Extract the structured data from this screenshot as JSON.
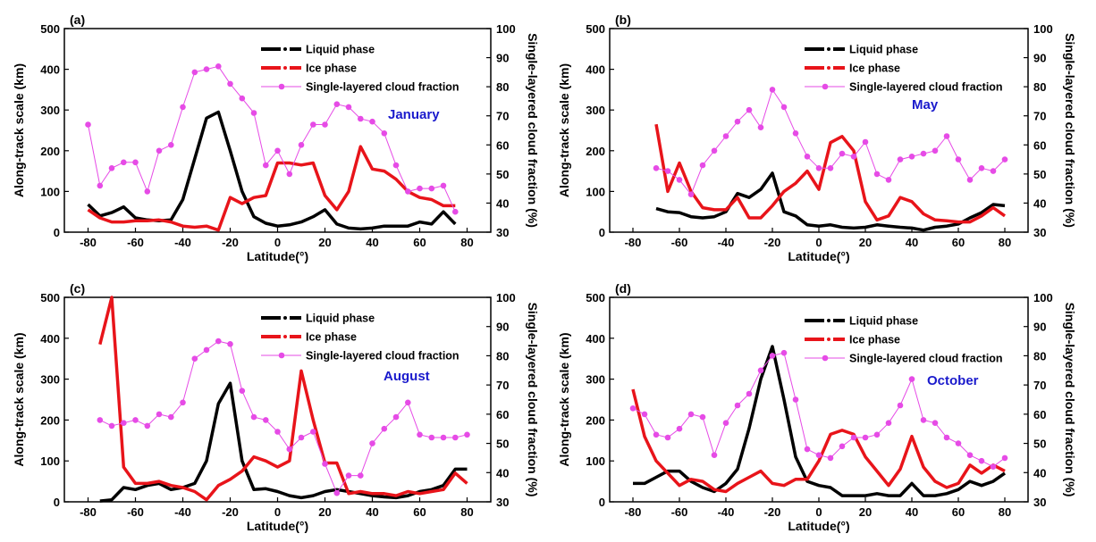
{
  "colors": {
    "liquid": "#000000",
    "ice": "#e8141a",
    "fraction": "#e64be6",
    "month": "#1a1acc"
  },
  "chart_data": [
    {
      "type": "line",
      "panel_label": "(a)",
      "month": "January",
      "xlabel": "Latitude(°)",
      "ylabel": "Along-track scale (km)",
      "ylabel2": "Single-layered cloud fraction (%)",
      "xlim": [
        -90,
        90
      ],
      "ylim": [
        0,
        500
      ],
      "ylim2": [
        30,
        100
      ],
      "xticks": [
        -80,
        -60,
        -40,
        -20,
        0,
        20,
        40,
        60,
        80
      ],
      "yticks": [
        0,
        100,
        200,
        300,
        400,
        500
      ],
      "yticks2": [
        30,
        40,
        50,
        60,
        70,
        80,
        90,
        100
      ],
      "legend": [
        "Liquid phase",
        "Ice phase",
        "Single-layered cloud fraction"
      ],
      "series": [
        {
          "name": "Liquid phase",
          "axis": "left",
          "x": [
            -80,
            -75,
            -70,
            -65,
            -60,
            -55,
            -50,
            -45,
            -40,
            -35,
            -30,
            -25,
            -20,
            -15,
            -10,
            -5,
            0,
            5,
            10,
            15,
            20,
            25,
            30,
            35,
            40,
            45,
            50,
            55,
            60,
            65,
            70,
            75
          ],
          "y": [
            68,
            40,
            48,
            62,
            35,
            30,
            28,
            30,
            80,
            180,
            280,
            295,
            200,
            100,
            38,
            22,
            15,
            18,
            25,
            38,
            55,
            20,
            10,
            8,
            10,
            15,
            15,
            15,
            25,
            20,
            50,
            20
          ]
        },
        {
          "name": "Ice phase",
          "axis": "left",
          "x": [
            -80,
            -75,
            -70,
            -65,
            -60,
            -55,
            -50,
            -45,
            -40,
            -35,
            -30,
            -25,
            -20,
            -15,
            -10,
            -5,
            0,
            5,
            10,
            15,
            20,
            25,
            30,
            35,
            40,
            45,
            50,
            55,
            60,
            65,
            70,
            75
          ],
          "y": [
            55,
            35,
            25,
            25,
            28,
            28,
            30,
            25,
            15,
            12,
            15,
            5,
            85,
            70,
            85,
            90,
            170,
            170,
            165,
            170,
            90,
            55,
            100,
            210,
            155,
            150,
            130,
            100,
            85,
            80,
            65,
            65
          ]
        },
        {
          "name": "Single-layered cloud fraction",
          "axis": "right",
          "x": [
            -80,
            -75,
            -70,
            -65,
            -60,
            -55,
            -50,
            -45,
            -40,
            -35,
            -30,
            -25,
            -20,
            -15,
            -10,
            -5,
            0,
            5,
            10,
            15,
            20,
            25,
            30,
            35,
            40,
            45,
            50,
            55,
            60,
            65,
            70,
            75
          ],
          "y": [
            67,
            46,
            52,
            54,
            54,
            44,
            58,
            60,
            73,
            85,
            86,
            87,
            81,
            76,
            71,
            53,
            58,
            50,
            60,
            67,
            67,
            74,
            73,
            69,
            68,
            64,
            53,
            44,
            45,
            45,
            46,
            37
          ]
        }
      ]
    },
    {
      "type": "line",
      "panel_label": "(b)",
      "month": "May",
      "xlabel": "Latitude(°)",
      "ylabel": "Along-track scale (km)",
      "ylabel2": "Single-layered cloud fraction (%)",
      "xlim": [
        -90,
        90
      ],
      "ylim": [
        0,
        500
      ],
      "ylim2": [
        30,
        100
      ],
      "xticks": [
        -80,
        -60,
        -40,
        -20,
        0,
        20,
        40,
        60,
        80
      ],
      "yticks": [
        0,
        100,
        200,
        300,
        400,
        500
      ],
      "yticks2": [
        30,
        40,
        50,
        60,
        70,
        80,
        90,
        100
      ],
      "legend": [
        "Liquid phase",
        "Ice phase",
        "Single-layered cloud fraction"
      ],
      "series": [
        {
          "name": "Liquid phase",
          "axis": "left",
          "x": [
            -70,
            -65,
            -60,
            -55,
            -50,
            -45,
            -40,
            -35,
            -30,
            -25,
            -20,
            -15,
            -10,
            -5,
            0,
            5,
            10,
            15,
            20,
            25,
            30,
            35,
            40,
            45,
            50,
            55,
            60,
            65,
            70,
            75,
            80
          ],
          "y": [
            58,
            50,
            48,
            38,
            35,
            38,
            50,
            95,
            85,
            105,
            145,
            50,
            40,
            18,
            15,
            18,
            12,
            10,
            12,
            18,
            15,
            12,
            10,
            5,
            12,
            15,
            20,
            35,
            48,
            68,
            65
          ]
        },
        {
          "name": "Ice phase",
          "axis": "left",
          "x": [
            -70,
            -65,
            -60,
            -55,
            -50,
            -45,
            -40,
            -35,
            -30,
            -25,
            -20,
            -15,
            -10,
            -5,
            0,
            5,
            10,
            15,
            20,
            25,
            30,
            35,
            40,
            45,
            50,
            55,
            60,
            65,
            70,
            75,
            80
          ],
          "y": [
            265,
            100,
            170,
            100,
            60,
            55,
            55,
            85,
            35,
            35,
            65,
            100,
            120,
            150,
            105,
            220,
            235,
            200,
            75,
            30,
            40,
            85,
            75,
            45,
            30,
            28,
            25,
            25,
            40,
            60,
            40
          ]
        },
        {
          "name": "Single-layered cloud fraction",
          "axis": "right",
          "x": [
            -70,
            -65,
            -60,
            -55,
            -50,
            -45,
            -40,
            -35,
            -30,
            -25,
            -20,
            -15,
            -10,
            -5,
            0,
            5,
            10,
            15,
            20,
            25,
            30,
            35,
            40,
            45,
            50,
            55,
            60,
            65,
            70,
            75,
            80
          ],
          "y": [
            52,
            51,
            48,
            43,
            53,
            58,
            63,
            68,
            72,
            66,
            79,
            73,
            64,
            56,
            52,
            52,
            57,
            56,
            61,
            50,
            48,
            55,
            56,
            57,
            58,
            63,
            55,
            48,
            52,
            51,
            55
          ]
        }
      ]
    },
    {
      "type": "line",
      "panel_label": "(c)",
      "month": "August",
      "xlabel": "Latitude(°)",
      "ylabel": "Along-track scale (km)",
      "ylabel2": "Single-layered cloud fraction (%)",
      "xlim": [
        -90,
        90
      ],
      "ylim": [
        0,
        500
      ],
      "ylim2": [
        30,
        100
      ],
      "xticks": [
        -80,
        -60,
        -40,
        -20,
        0,
        20,
        40,
        60,
        80
      ],
      "yticks": [
        0,
        100,
        200,
        300,
        400,
        500
      ],
      "yticks2": [
        30,
        40,
        50,
        60,
        70,
        80,
        90,
        100
      ],
      "legend": [
        "Liquid phase",
        "Ice phase",
        "Single-layered cloud fraction"
      ],
      "series": [
        {
          "name": "Liquid phase",
          "axis": "left",
          "x": [
            -75,
            -70,
            -65,
            -60,
            -55,
            -50,
            -45,
            -40,
            -35,
            -30,
            -25,
            -20,
            -15,
            -10,
            -5,
            0,
            5,
            10,
            15,
            20,
            25,
            30,
            35,
            40,
            45,
            50,
            55,
            60,
            65,
            70,
            75,
            80
          ],
          "y": [
            2,
            5,
            35,
            30,
            40,
            45,
            30,
            35,
            45,
            100,
            240,
            290,
            100,
            30,
            32,
            25,
            15,
            10,
            15,
            25,
            30,
            25,
            20,
            15,
            12,
            10,
            15,
            25,
            30,
            40,
            80,
            80
          ]
        },
        {
          "name": "Ice phase",
          "axis": "left",
          "x": [
            -75,
            -70,
            -65,
            -60,
            -55,
            -50,
            -45,
            -40,
            -35,
            -30,
            -25,
            -20,
            -15,
            -10,
            -5,
            0,
            5,
            10,
            15,
            20,
            25,
            30,
            35,
            40,
            45,
            50,
            55,
            60,
            65,
            70,
            75,
            80
          ],
          "y": [
            385,
            500,
            85,
            45,
            45,
            50,
            40,
            35,
            25,
            5,
            40,
            55,
            75,
            110,
            100,
            85,
            100,
            320,
            200,
            95,
            95,
            20,
            25,
            20,
            20,
            15,
            25,
            20,
            25,
            30,
            70,
            45
          ]
        },
        {
          "name": "Single-layered cloud fraction",
          "axis": "right",
          "x": [
            -75,
            -70,
            -65,
            -60,
            -55,
            -50,
            -45,
            -40,
            -35,
            -30,
            -25,
            -20,
            -15,
            -10,
            -5,
            0,
            5,
            10,
            15,
            20,
            25,
            30,
            35,
            40,
            45,
            50,
            55,
            60,
            65,
            70,
            75,
            80
          ],
          "y": [
            58,
            56,
            57,
            58,
            56,
            60,
            59,
            64,
            79,
            82,
            85,
            84,
            68,
            59,
            58,
            54,
            48,
            52,
            54,
            43,
            33,
            39,
            39,
            50,
            55,
            59,
            64,
            53,
            52,
            52,
            52,
            53
          ]
        }
      ]
    },
    {
      "type": "line",
      "panel_label": "(d)",
      "month": "October",
      "xlabel": "Latitude(°)",
      "ylabel": "Along-track scale (km)",
      "ylabel2": "Single-layered cloud fraction (%)",
      "xlim": [
        -90,
        90
      ],
      "ylim": [
        0,
        500
      ],
      "ylim2": [
        30,
        100
      ],
      "xticks": [
        -80,
        -60,
        -40,
        -20,
        0,
        20,
        40,
        60,
        80
      ],
      "yticks": [
        0,
        100,
        200,
        300,
        400,
        500
      ],
      "yticks2": [
        30,
        40,
        50,
        60,
        70,
        80,
        90,
        100
      ],
      "legend": [
        "Liquid phase",
        "Ice phase",
        "Single-layered cloud fraction"
      ],
      "series": [
        {
          "name": "Liquid phase",
          "axis": "left",
          "x": [
            -80,
            -75,
            -70,
            -65,
            -60,
            -55,
            -50,
            -45,
            -40,
            -35,
            -30,
            -25,
            -20,
            -15,
            -10,
            -5,
            0,
            5,
            10,
            15,
            20,
            25,
            30,
            35,
            40,
            45,
            50,
            55,
            60,
            65,
            70,
            75,
            80
          ],
          "y": [
            45,
            45,
            60,
            75,
            75,
            50,
            35,
            25,
            45,
            80,
            180,
            300,
            380,
            250,
            110,
            50,
            40,
            35,
            15,
            15,
            15,
            20,
            15,
            15,
            45,
            15,
            15,
            20,
            30,
            50,
            40,
            50,
            70
          ]
        },
        {
          "name": "Ice phase",
          "axis": "left",
          "x": [
            -80,
            -75,
            -70,
            -65,
            -60,
            -55,
            -50,
            -45,
            -40,
            -35,
            -30,
            -25,
            -20,
            -15,
            -10,
            -5,
            0,
            5,
            10,
            15,
            20,
            25,
            30,
            35,
            40,
            45,
            50,
            55,
            60,
            65,
            70,
            75,
            80
          ],
          "y": [
            275,
            160,
            100,
            70,
            40,
            55,
            50,
            30,
            25,
            45,
            60,
            75,
            45,
            40,
            55,
            55,
            100,
            165,
            175,
            165,
            110,
            75,
            40,
            80,
            160,
            85,
            50,
            35,
            45,
            90,
            70,
            90,
            75
          ]
        },
        {
          "name": "Single-layered cloud fraction",
          "axis": "right",
          "x": [
            -80,
            -75,
            -70,
            -65,
            -60,
            -55,
            -50,
            -45,
            -40,
            -35,
            -30,
            -25,
            -20,
            -15,
            -10,
            -5,
            0,
            5,
            10,
            15,
            20,
            25,
            30,
            35,
            40,
            45,
            50,
            55,
            60,
            65,
            70,
            75,
            80
          ],
          "y": [
            62,
            60,
            53,
            52,
            55,
            60,
            59,
            46,
            57,
            63,
            67,
            75,
            80,
            81,
            65,
            48,
            46,
            45,
            49,
            52,
            52,
            53,
            57,
            63,
            72,
            58,
            57,
            52,
            50,
            46,
            44,
            42,
            45
          ]
        }
      ]
    }
  ]
}
